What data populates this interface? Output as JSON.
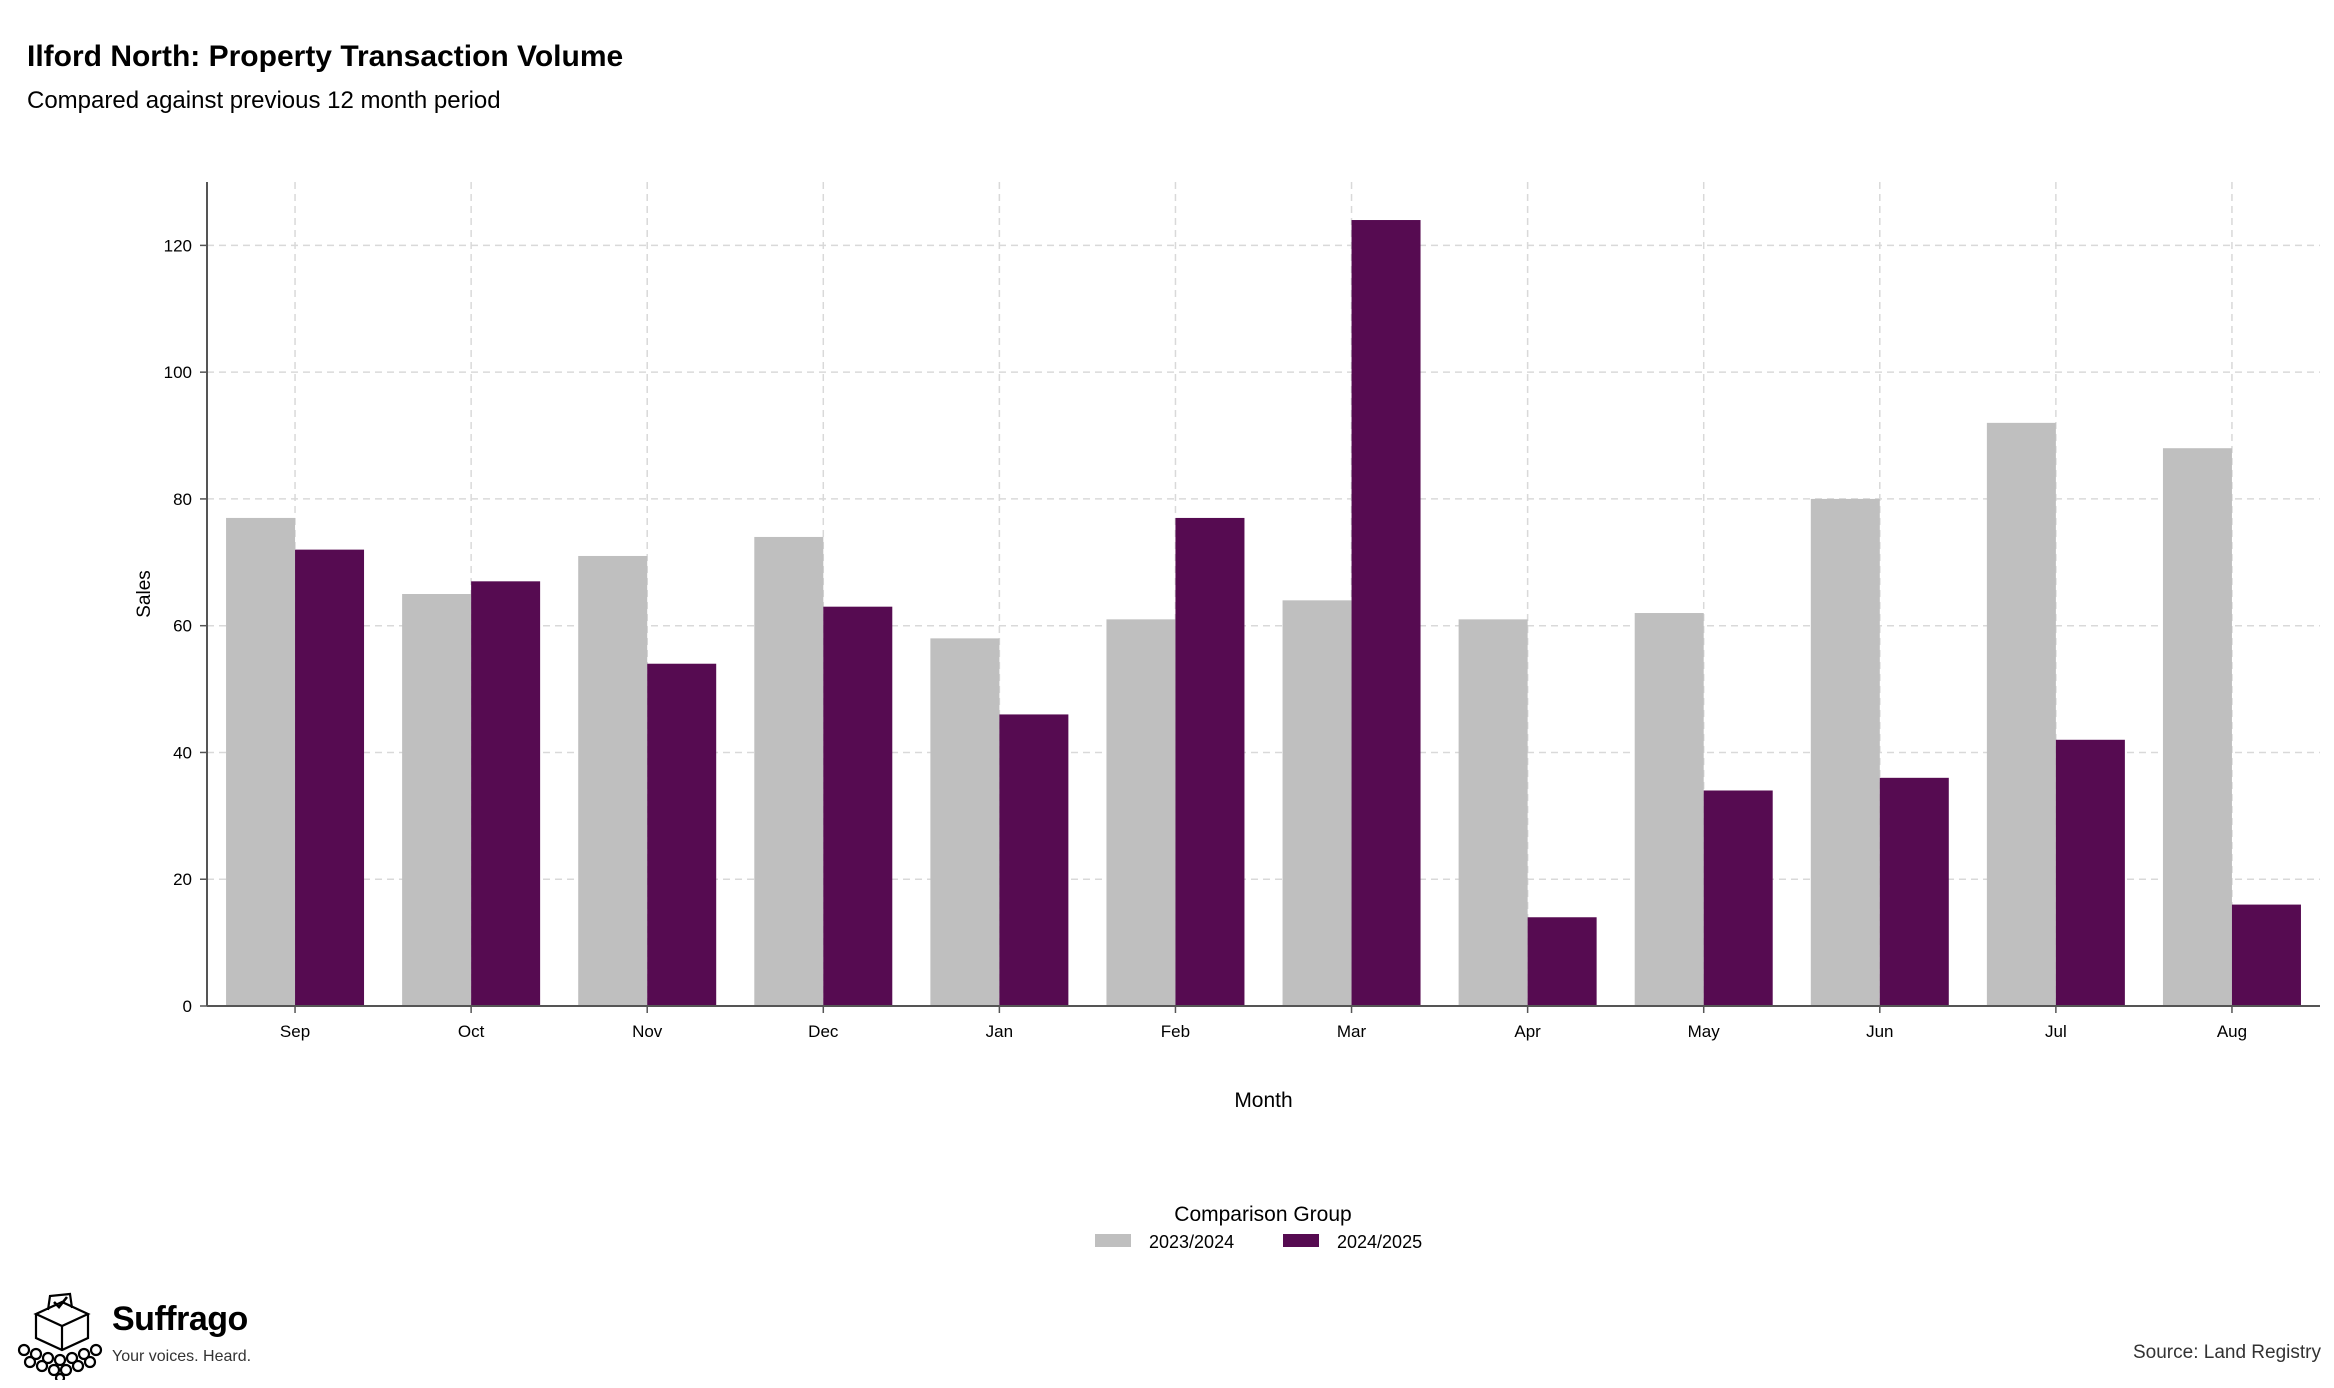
{
  "header": {
    "title": "Ilford North: Property Transaction Volume",
    "subtitle": "Compared against previous 12 month period"
  },
  "chart_data": {
    "type": "bar",
    "categories": [
      "Sep",
      "Oct",
      "Nov",
      "Dec",
      "Jan",
      "Feb",
      "Mar",
      "Apr",
      "May",
      "Jun",
      "Jul",
      "Aug"
    ],
    "series": [
      {
        "name": "2023/2024",
        "color": "#bfbfbf",
        "values": [
          77,
          65,
          71,
          74,
          58,
          61,
          64,
          61,
          62,
          80,
          92,
          88
        ]
      },
      {
        "name": "2024/2025",
        "color": "#560b51",
        "values": [
          72,
          67,
          54,
          63,
          46,
          77,
          124,
          14,
          34,
          36,
          42,
          16
        ]
      }
    ],
    "xlabel": "Month",
    "ylabel": "Sales",
    "ylim": [
      0,
      130
    ],
    "yticks": [
      0,
      20,
      40,
      60,
      80,
      100,
      120
    ],
    "grid": true,
    "legend": {
      "title": "Comparison Group",
      "position": "bottom"
    }
  },
  "footer": {
    "brand_name": "Suffrago",
    "brand_tagline": "Your voices. Heard.",
    "source": "Source: Land Registry"
  }
}
